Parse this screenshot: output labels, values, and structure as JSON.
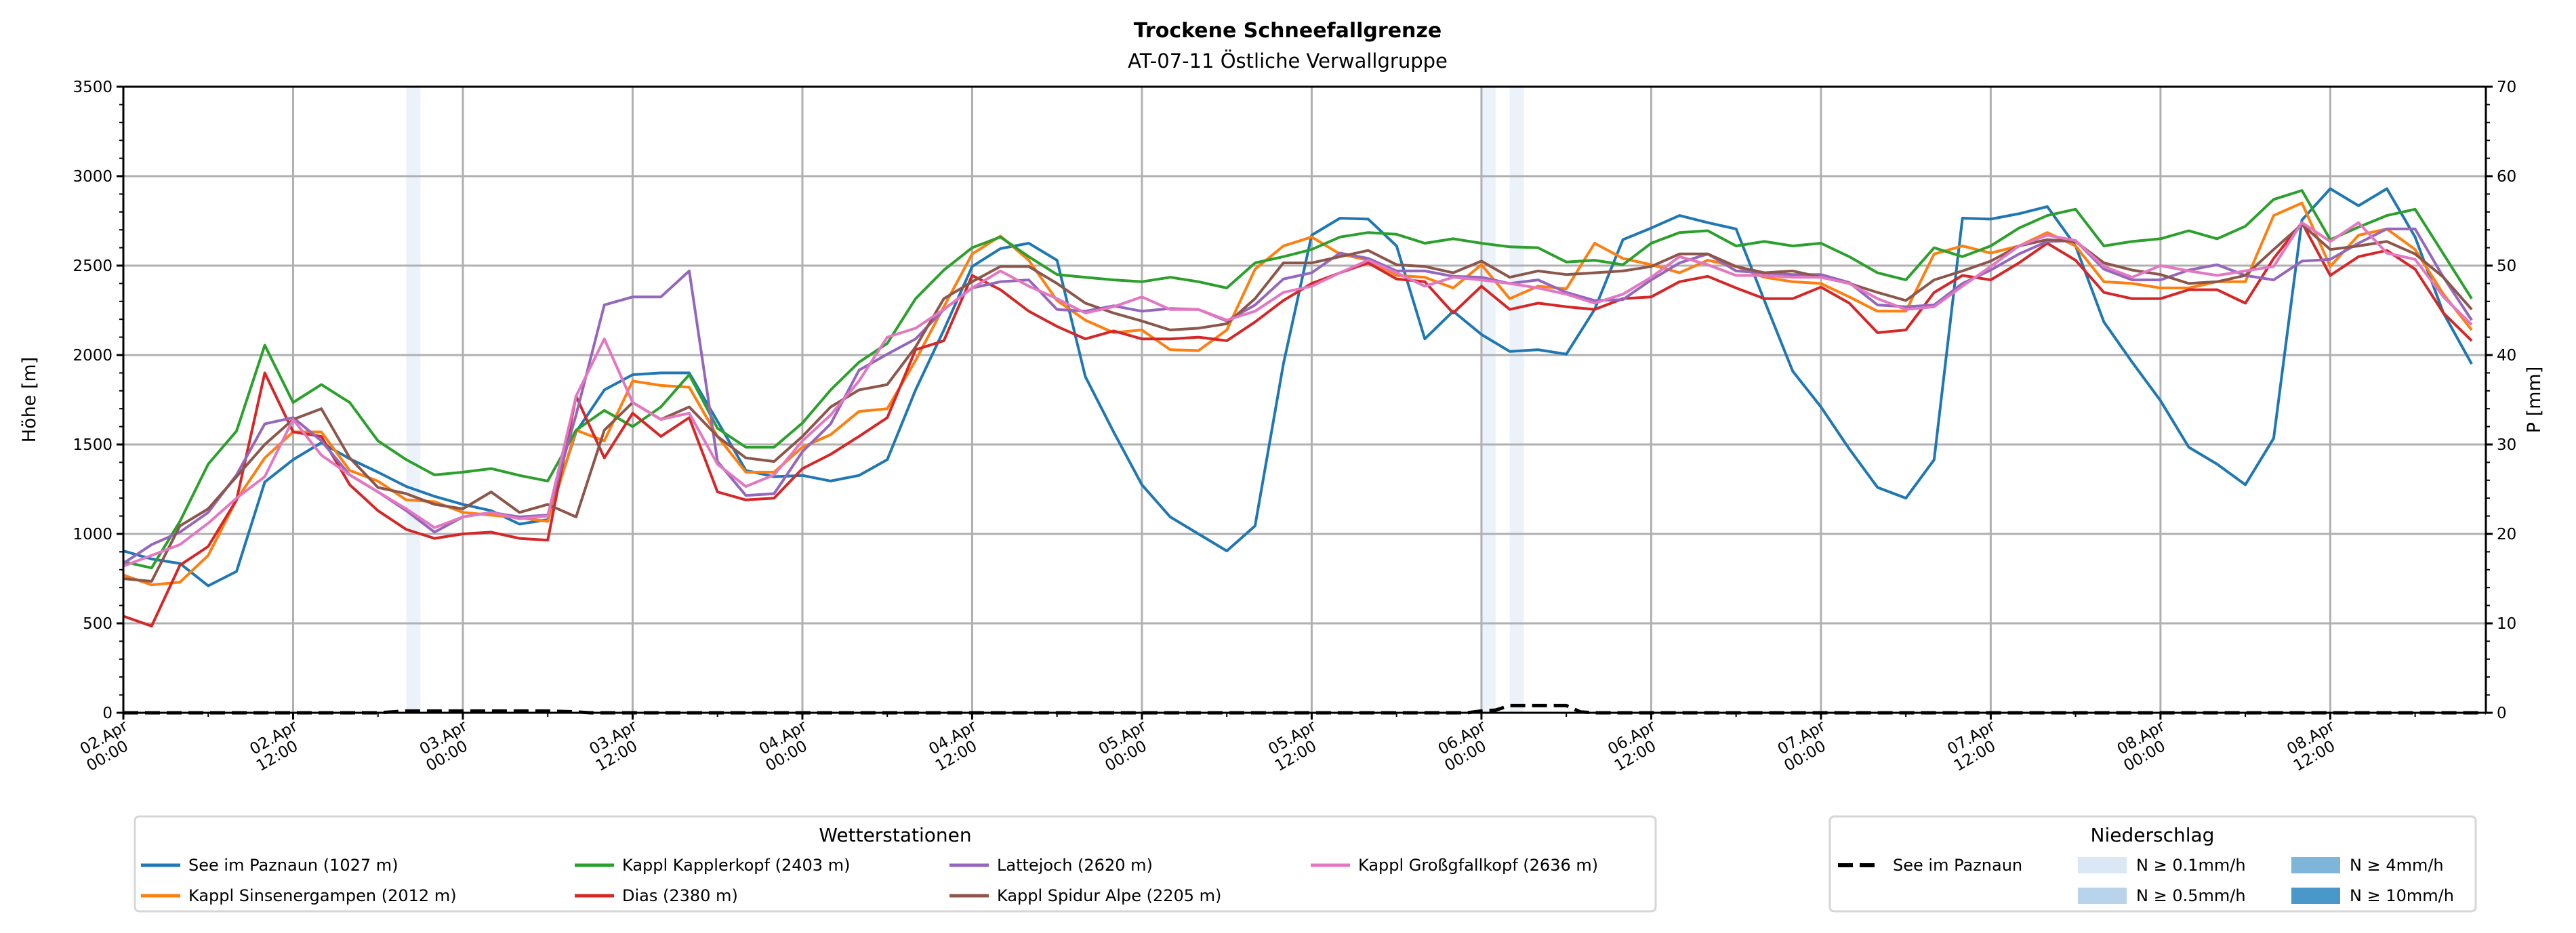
{
  "chart_data": {
    "type": "line",
    "title": "Trockene Schneefallgrenze",
    "subtitle": "AT-07-11 Östliche Verwallgruppe",
    "ylabel": "Höhe [m]",
    "y2label": "P [mm]",
    "ylim": [
      0,
      3500
    ],
    "y2lim": [
      0,
      70
    ],
    "xlim_hours": [
      0,
      167
    ],
    "grid": true,
    "yticks": [
      "0",
      "500",
      "1000",
      "1500",
      "2000",
      "2500",
      "3000",
      "3500"
    ],
    "y2ticks": [
      "0",
      "10",
      "20",
      "30",
      "40",
      "50",
      "60",
      "70"
    ],
    "xticks": [
      {
        "date": "02.Apr",
        "time": "00:00"
      },
      {
        "date": "02.Apr",
        "time": "12:00"
      },
      {
        "date": "03.Apr",
        "time": "00:00"
      },
      {
        "date": "03.Apr",
        "time": "12:00"
      },
      {
        "date": "04.Apr",
        "time": "00:00"
      },
      {
        "date": "04.Apr",
        "time": "12:00"
      },
      {
        "date": "05.Apr",
        "time": "00:00"
      },
      {
        "date": "05.Apr",
        "time": "12:00"
      },
      {
        "date": "06.Apr",
        "time": "00:00"
      },
      {
        "date": "06.Apr",
        "time": "12:00"
      },
      {
        "date": "07.Apr",
        "time": "00:00"
      },
      {
        "date": "07.Apr",
        "time": "12:00"
      },
      {
        "date": "08.Apr",
        "time": "00:00"
      },
      {
        "date": "08.Apr",
        "time": "12:00"
      }
    ],
    "x_hours_step": 2,
    "series": [
      {
        "name": "See im Paznaun (1027 m)",
        "color": "#1f77b4",
        "values": [
          905,
          860,
          835,
          710,
          790,
          1290,
          1415,
          1510,
          1420,
          1345,
          1265,
          1210,
          1165,
          1130,
          1055,
          1080,
          1570,
          1805,
          1890,
          1900,
          1900,
          1630,
          1355,
          1320,
          1327,
          1296,
          1327,
          1415,
          1805,
          2140,
          2495,
          2595,
          2625,
          2530,
          1880,
          1570,
          1275,
          1095,
          1000,
          905,
          1045,
          1950,
          2670,
          2765,
          2760,
          2610,
          2090,
          2245,
          2115,
          2020,
          2030,
          2005,
          2255,
          2645,
          2710,
          2780,
          2740,
          2705,
          2305,
          1910,
          1710,
          1475,
          1260,
          1200,
          1415,
          2765,
          2760,
          2790,
          2830,
          2610,
          2185,
          1960,
          1745,
          1485,
          1390,
          1275,
          1535,
          2755,
          2930,
          2835,
          2930,
          2660,
          2235,
          1950
        ]
      },
      {
        "name": "Kappl Sinsenergampen (2012 m)",
        "color": "#ff7f0e",
        "values": [
          770,
          715,
          730,
          880,
          1190,
          1425,
          1570,
          1570,
          1355,
          1295,
          1190,
          1180,
          1120,
          1105,
          1090,
          1070,
          1580,
          1520,
          1855,
          1830,
          1820,
          1545,
          1345,
          1345,
          1485,
          1555,
          1685,
          1700,
          1970,
          2270,
          2565,
          2665,
          2530,
          2305,
          2195,
          2125,
          2140,
          2030,
          2025,
          2140,
          2480,
          2610,
          2660,
          2565,
          2530,
          2445,
          2435,
          2375,
          2505,
          2315,
          2385,
          2370,
          2625,
          2540,
          2505,
          2460,
          2530,
          2495,
          2435,
          2410,
          2400,
          2325,
          2245,
          2245,
          2565,
          2610,
          2570,
          2610,
          2685,
          2610,
          2410,
          2400,
          2375,
          2375,
          2410,
          2410,
          2780,
          2850,
          2495,
          2670,
          2705,
          2590,
          2340,
          2140
        ]
      },
      {
        "name": "Kappl Kapplerkopf (2403 m)",
        "color": "#2ca02c",
        "values": [
          845,
          810,
          1070,
          1390,
          1575,
          2055,
          1735,
          1835,
          1735,
          1520,
          1415,
          1330,
          1345,
          1365,
          1327,
          1296,
          1580,
          1690,
          1600,
          1710,
          1890,
          1590,
          1485,
          1485,
          1620,
          1805,
          1960,
          2065,
          2315,
          2475,
          2600,
          2660,
          2550,
          2450,
          2435,
          2420,
          2410,
          2435,
          2410,
          2375,
          2515,
          2550,
          2590,
          2660,
          2685,
          2675,
          2625,
          2650,
          2625,
          2605,
          2600,
          2520,
          2530,
          2505,
          2625,
          2685,
          2695,
          2610,
          2635,
          2610,
          2625,
          2550,
          2460,
          2420,
          2600,
          2550,
          2610,
          2710,
          2780,
          2815,
          2610,
          2635,
          2650,
          2695,
          2650,
          2720,
          2870,
          2920,
          2645,
          2715,
          2780,
          2815,
          2565,
          2315
        ]
      },
      {
        "name": "Dias (2380 m)",
        "color": "#d62728",
        "values": [
          540,
          485,
          825,
          930,
          1190,
          1900,
          1570,
          1545,
          1275,
          1130,
          1025,
          975,
          1000,
          1010,
          975,
          965,
          1770,
          1425,
          1675,
          1545,
          1650,
          1235,
          1190,
          1200,
          1365,
          1445,
          1545,
          1650,
          2030,
          2080,
          2445,
          2365,
          2245,
          2160,
          2090,
          2135,
          2090,
          2090,
          2100,
          2080,
          2185,
          2305,
          2400,
          2460,
          2515,
          2425,
          2410,
          2235,
          2385,
          2255,
          2290,
          2270,
          2255,
          2315,
          2325,
          2410,
          2440,
          2375,
          2315,
          2315,
          2380,
          2290,
          2125,
          2140,
          2350,
          2445,
          2420,
          2515,
          2625,
          2530,
          2350,
          2315,
          2315,
          2365,
          2365,
          2290,
          2540,
          2740,
          2445,
          2550,
          2585,
          2480,
          2235,
          2080
        ]
      },
      {
        "name": "Lattejoch (2620 m)",
        "color": "#9467bd",
        "values": [
          835,
          940,
          1010,
          1120,
          1330,
          1615,
          1650,
          1520,
          1330,
          1235,
          1130,
          1010,
          1095,
          1120,
          1095,
          1105,
          1665,
          2280,
          2325,
          2325,
          2470,
          1405,
          1215,
          1225,
          1460,
          1615,
          1915,
          2005,
          2090,
          2255,
          2375,
          2410,
          2420,
          2255,
          2245,
          2275,
          2245,
          2260,
          2255,
          2190,
          2280,
          2425,
          2460,
          2570,
          2540,
          2470,
          2470,
          2440,
          2435,
          2400,
          2420,
          2350,
          2305,
          2310,
          2420,
          2515,
          2565,
          2470,
          2460,
          2450,
          2450,
          2405,
          2280,
          2270,
          2280,
          2400,
          2475,
          2565,
          2635,
          2640,
          2480,
          2420,
          2420,
          2475,
          2505,
          2445,
          2420,
          2525,
          2535,
          2625,
          2705,
          2705,
          2435,
          2195
        ]
      },
      {
        "name": "Kappl Spidur Alpe (2205 m)",
        "color": "#8c564b",
        "values": [
          750,
          735,
          1045,
          1140,
          1320,
          1500,
          1640,
          1700,
          1425,
          1260,
          1225,
          1165,
          1140,
          1235,
          1120,
          1165,
          1095,
          1580,
          1735,
          1640,
          1710,
          1545,
          1425,
          1405,
          1545,
          1710,
          1805,
          1835,
          2045,
          2315,
          2410,
          2495,
          2495,
          2400,
          2290,
          2235,
          2190,
          2140,
          2150,
          2175,
          2315,
          2515,
          2515,
          2550,
          2585,
          2505,
          2495,
          2460,
          2525,
          2435,
          2470,
          2450,
          2460,
          2470,
          2495,
          2565,
          2565,
          2495,
          2460,
          2470,
          2435,
          2400,
          2350,
          2305,
          2420,
          2470,
          2525,
          2610,
          2645,
          2635,
          2515,
          2475,
          2450,
          2400,
          2410,
          2445,
          2590,
          2730,
          2590,
          2610,
          2635,
          2565,
          2435,
          2255
        ]
      },
      {
        "name": "Kappl Großgfallkopf (2636 m)",
        "color": "#e377c2",
        "values": [
          820,
          880,
          940,
          1060,
          1200,
          1320,
          1640,
          1440,
          1330,
          1235,
          1140,
          1035,
          1095,
          1120,
          1085,
          1100,
          1770,
          2090,
          1735,
          1640,
          1675,
          1390,
          1265,
          1330,
          1520,
          1665,
          1855,
          2100,
          2150,
          2255,
          2375,
          2470,
          2385,
          2315,
          2235,
          2270,
          2325,
          2255,
          2255,
          2195,
          2245,
          2350,
          2385,
          2460,
          2530,
          2460,
          2385,
          2435,
          2420,
          2400,
          2375,
          2340,
          2290,
          2340,
          2435,
          2550,
          2505,
          2445,
          2445,
          2435,
          2435,
          2400,
          2315,
          2255,
          2270,
          2385,
          2495,
          2610,
          2670,
          2640,
          2495,
          2435,
          2500,
          2470,
          2445,
          2470,
          2495,
          2740,
          2635,
          2740,
          2570,
          2535,
          2325,
          2170
        ]
      }
    ],
    "precipitation": {
      "name": "See im Paznaun",
      "points_hour_mm": [
        [
          0,
          0
        ],
        [
          18,
          0
        ],
        [
          19,
          0.1
        ],
        [
          20,
          0.2
        ],
        [
          22,
          0.2
        ],
        [
          30,
          0.2
        ],
        [
          32,
          0.1
        ],
        [
          33,
          0
        ],
        [
          95,
          0
        ],
        [
          96,
          0.2
        ],
        [
          97,
          0.3
        ],
        [
          98,
          0.8
        ],
        [
          102,
          0.8
        ],
        [
          103,
          0.1
        ],
        [
          104,
          0
        ],
        [
          167,
          0
        ]
      ],
      "bands": [
        {
          "start": 20,
          "end": 21,
          "level": 0
        },
        {
          "start": 96,
          "end": 97,
          "level": 0
        },
        {
          "start": 98,
          "end": 99,
          "level": 0
        }
      ]
    },
    "legend_stations": {
      "title": "Wetterstationen",
      "placement": "bottom-left"
    },
    "legend_precip": {
      "title": "Niederschlag",
      "placement": "bottom-right",
      "line_label": "See im Paznaun",
      "levels": [
        {
          "label": "N ≥ 0.1mm/h",
          "color": "#dae8f5"
        },
        {
          "label": "N ≥ 0.5mm/h",
          "color": "#b7d4ea"
        },
        {
          "label": "N ≥ 4mm/h",
          "color": "#7fb5d9"
        },
        {
          "label": "N ≥ 10mm/h",
          "color": "#4a98c9"
        }
      ]
    }
  }
}
